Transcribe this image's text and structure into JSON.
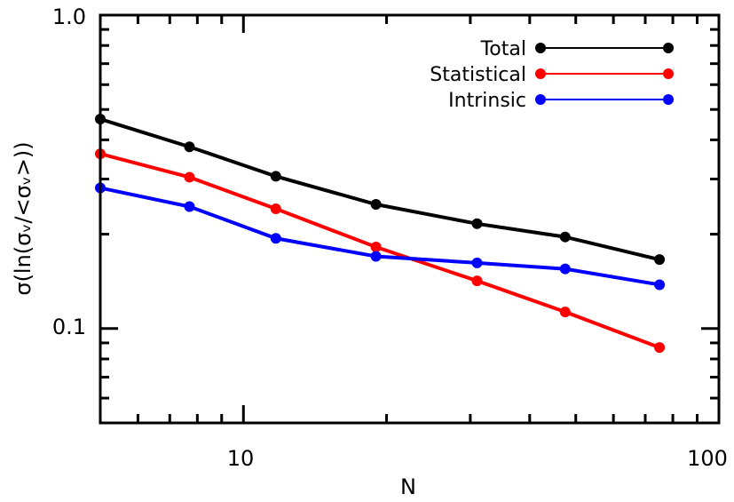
{
  "chart_data": {
    "type": "line",
    "title": "",
    "xlabel": "N",
    "ylabel": "σ(ln(σᵥ/<σᵥ>))",
    "xscale": "log",
    "yscale": "log",
    "xlim": [
      5,
      100
    ],
    "ylim": [
      0.05,
      1.0
    ],
    "x_tick_labels": [
      "10",
      "100"
    ],
    "y_tick_labels": [
      "0.1",
      "1.0"
    ],
    "grid": false,
    "legend_position": "top-right",
    "x": [
      5,
      7.7,
      11.7,
      19,
      31,
      47.5,
      75
    ],
    "series": [
      {
        "name": "Total",
        "color": "#000000",
        "values": [
          0.466,
          0.38,
          0.306,
          0.249,
          0.216,
          0.196,
          0.166
        ]
      },
      {
        "name": "Statistical",
        "color": "#ff0000",
        "values": [
          0.361,
          0.304,
          0.241,
          0.182,
          0.142,
          0.113,
          0.087
        ]
      },
      {
        "name": "Intrinsic",
        "color": "#0000ff",
        "values": [
          0.281,
          0.245,
          0.194,
          0.17,
          0.162,
          0.155,
          0.138
        ]
      }
    ]
  }
}
